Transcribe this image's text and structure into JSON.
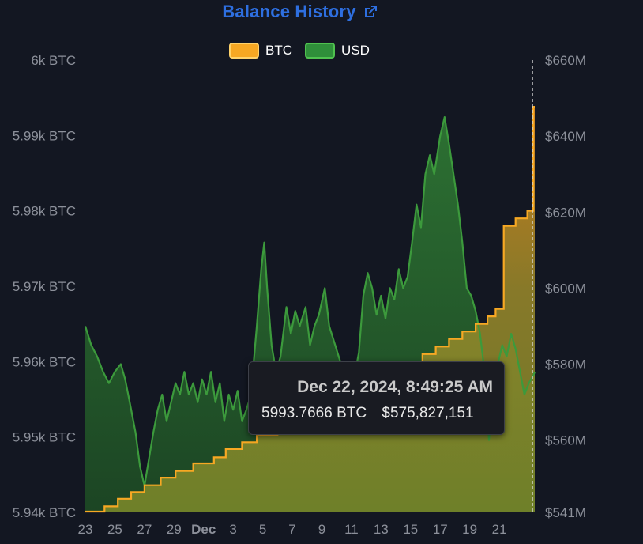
{
  "title": "Balance History",
  "legend": [
    {
      "label": "BTC",
      "color": "#f7a823"
    },
    {
      "label": "USD",
      "color": "#3c9a3c"
    }
  ],
  "tooltip": {
    "date": "Dec 22, 2024, 8:49:25 AM",
    "btc": "5993.7666 BTC",
    "usd": "$575,827,151"
  },
  "chart_data": {
    "type": "area",
    "left_axis": {
      "unit": "BTC",
      "range": [
        5940,
        6000
      ],
      "ticks": [
        {
          "value": 6000,
          "label": "6k BTC"
        },
        {
          "value": 5990,
          "label": "5.99k BTC"
        },
        {
          "value": 5980,
          "label": "5.98k BTC"
        },
        {
          "value": 5970,
          "label": "5.97k BTC"
        },
        {
          "value": 5960,
          "label": "5.96k BTC"
        },
        {
          "value": 5950,
          "label": "5.95k BTC"
        },
        {
          "value": 5940,
          "label": "5.94k BTC"
        }
      ]
    },
    "right_axis": {
      "unit": "USD",
      "range": [
        541,
        660
      ],
      "ticks": [
        {
          "value": 660,
          "label": "$660M"
        },
        {
          "value": 640,
          "label": "$640M"
        },
        {
          "value": 620,
          "label": "$620M"
        },
        {
          "value": 600,
          "label": "$600M"
        },
        {
          "value": 580,
          "label": "$580M"
        },
        {
          "value": 560,
          "label": "$560M"
        },
        {
          "value": 541,
          "label": "$541M"
        }
      ]
    },
    "x_axis": {
      "range": [
        -8,
        22.4
      ],
      "ticks": [
        {
          "value": -8,
          "label": "23",
          "bold": false
        },
        {
          "value": -6,
          "label": "25",
          "bold": false
        },
        {
          "value": -4,
          "label": "27",
          "bold": false
        },
        {
          "value": -2,
          "label": "29",
          "bold": false
        },
        {
          "value": 0,
          "label": "Dec",
          "bold": true
        },
        {
          "value": 2,
          "label": "3",
          "bold": false
        },
        {
          "value": 4,
          "label": "5",
          "bold": false
        },
        {
          "value": 6,
          "label": "7",
          "bold": false
        },
        {
          "value": 8,
          "label": "9",
          "bold": false
        },
        {
          "value": 10,
          "label": "11",
          "bold": false
        },
        {
          "value": 12,
          "label": "13",
          "bold": false
        },
        {
          "value": 14,
          "label": "15",
          "bold": false
        },
        {
          "value": 16,
          "label": "17",
          "bold": false
        },
        {
          "value": 18,
          "label": "19",
          "bold": false
        },
        {
          "value": 20,
          "label": "21",
          "bold": false
        }
      ]
    },
    "series": [
      {
        "name": "BTC",
        "axis": "left",
        "color": "#f7a823",
        "step": true,
        "points": [
          [
            -8,
            5940.1
          ],
          [
            -6.7,
            5940.8
          ],
          [
            -5.8,
            5941.8
          ],
          [
            -4.9,
            5942.7
          ],
          [
            -4.0,
            5943.6
          ],
          [
            -2.9,
            5944.6
          ],
          [
            -1.9,
            5945.5
          ],
          [
            -0.7,
            5946.5
          ],
          [
            0.7,
            5947.3
          ],
          [
            1.5,
            5948.4
          ],
          [
            2.6,
            5949.3
          ],
          [
            3.6,
            5950.2
          ],
          [
            5.0,
            5951.2
          ],
          [
            6.3,
            5952.1
          ],
          [
            7.2,
            5953.1
          ],
          [
            8.0,
            5954.1
          ],
          [
            9.2,
            5955.0
          ],
          [
            10.2,
            5956.0
          ],
          [
            11.2,
            5957.0
          ],
          [
            12.1,
            5958.0
          ],
          [
            13.0,
            5959.0
          ],
          [
            13.9,
            5960.0
          ],
          [
            14.8,
            5961.0
          ],
          [
            15.7,
            5962.0
          ],
          [
            16.6,
            5963.0
          ],
          [
            17.5,
            5964.0
          ],
          [
            18.4,
            5965.0
          ],
          [
            19.2,
            5966.0
          ],
          [
            19.75,
            5967.0
          ],
          [
            20.3,
            5978.0
          ],
          [
            21.1,
            5979.0
          ],
          [
            21.9,
            5980.0
          ],
          [
            22.3,
            5993.8
          ],
          [
            22.4,
            5993.8
          ]
        ]
      },
      {
        "name": "USD",
        "axis": "right",
        "color": "#3c9a3c",
        "step": false,
        "points": [
          [
            -8.0,
            590
          ],
          [
            -7.6,
            585
          ],
          [
            -7.2,
            582
          ],
          [
            -6.8,
            578
          ],
          [
            -6.4,
            575
          ],
          [
            -6.0,
            578
          ],
          [
            -5.6,
            580
          ],
          [
            -5.3,
            576
          ],
          [
            -5.0,
            570
          ],
          [
            -4.6,
            562
          ],
          [
            -4.3,
            553
          ],
          [
            -4.0,
            548
          ],
          [
            -3.7,
            555
          ],
          [
            -3.4,
            562
          ],
          [
            -3.1,
            568
          ],
          [
            -2.8,
            572
          ],
          [
            -2.5,
            565
          ],
          [
            -2.2,
            570
          ],
          [
            -1.9,
            575
          ],
          [
            -1.6,
            572
          ],
          [
            -1.3,
            578
          ],
          [
            -1.0,
            572
          ],
          [
            -0.7,
            575
          ],
          [
            -0.4,
            570
          ],
          [
            -0.1,
            576
          ],
          [
            0.2,
            572
          ],
          [
            0.5,
            578
          ],
          [
            0.8,
            570
          ],
          [
            1.1,
            575
          ],
          [
            1.4,
            565
          ],
          [
            1.7,
            572
          ],
          [
            2.0,
            568
          ],
          [
            2.3,
            573
          ],
          [
            2.6,
            565
          ],
          [
            2.9,
            568
          ],
          [
            3.2,
            572
          ],
          [
            3.6,
            590
          ],
          [
            3.9,
            605
          ],
          [
            4.1,
            612
          ],
          [
            4.3,
            600
          ],
          [
            4.6,
            585
          ],
          [
            4.9,
            578
          ],
          [
            5.2,
            582
          ],
          [
            5.6,
            595
          ],
          [
            5.9,
            588
          ],
          [
            6.2,
            594
          ],
          [
            6.5,
            590
          ],
          [
            6.9,
            595
          ],
          [
            7.2,
            585
          ],
          [
            7.5,
            590
          ],
          [
            7.8,
            593
          ],
          [
            8.2,
            600
          ],
          [
            8.5,
            590
          ],
          [
            8.9,
            585
          ],
          [
            9.3,
            580
          ],
          [
            9.7,
            572
          ],
          [
            10.1,
            575
          ],
          [
            10.5,
            583
          ],
          [
            10.8,
            598
          ],
          [
            11.1,
            604
          ],
          [
            11.4,
            600
          ],
          [
            11.7,
            593
          ],
          [
            12.0,
            598
          ],
          [
            12.3,
            592
          ],
          [
            12.6,
            600
          ],
          [
            12.9,
            597
          ],
          [
            13.2,
            605
          ],
          [
            13.5,
            600
          ],
          [
            13.8,
            603
          ],
          [
            14.1,
            612
          ],
          [
            14.4,
            622
          ],
          [
            14.7,
            616
          ],
          [
            15.0,
            630
          ],
          [
            15.3,
            635
          ],
          [
            15.6,
            630
          ],
          [
            16.0,
            640
          ],
          [
            16.3,
            645
          ],
          [
            16.6,
            638
          ],
          [
            16.9,
            630
          ],
          [
            17.2,
            622
          ],
          [
            17.5,
            612
          ],
          [
            17.8,
            600
          ],
          [
            18.1,
            598
          ],
          [
            18.4,
            594
          ],
          [
            18.7,
            588
          ],
          [
            19.0,
            578
          ],
          [
            19.3,
            560
          ],
          [
            19.6,
            575
          ],
          [
            19.9,
            580
          ],
          [
            20.2,
            585
          ],
          [
            20.5,
            582
          ],
          [
            20.8,
            588
          ],
          [
            21.1,
            584
          ],
          [
            21.4,
            578
          ],
          [
            21.7,
            572
          ],
          [
            22.0,
            575
          ],
          [
            22.3,
            577
          ],
          [
            22.4,
            578
          ]
        ]
      }
    ],
    "crosshair_x": 22.25,
    "tooltip_text": {
      "date": "Dec 22, 2024, 8:49:25 AM",
      "btc": "5993.7666 BTC",
      "usd": "$575,827,151"
    }
  }
}
